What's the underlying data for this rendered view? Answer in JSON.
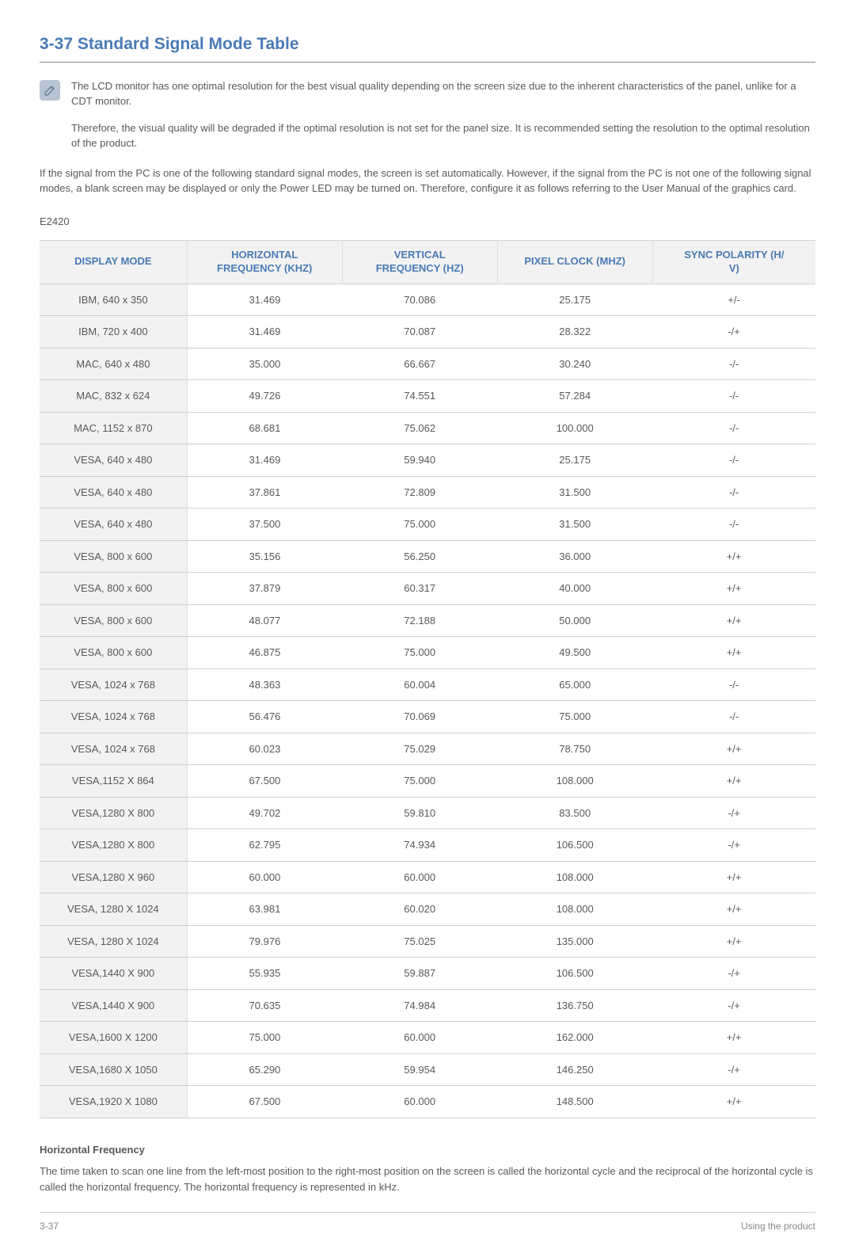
{
  "section": {
    "title": "3-37  Standard Signal Mode Table"
  },
  "note": {
    "para1": "The LCD monitor has one optimal resolution for the best visual quality depending on the screen size due to the inherent characteristics of the panel, unlike for a CDT monitor.",
    "para2": "Therefore, the visual quality will be degraded if the optimal resolution is not set for the panel size. It is recommended setting the resolution to the optimal resolution of the product."
  },
  "intro": "If the signal from the PC is one of the following standard signal modes, the screen is set automatically. However, if the signal from the PC is not one of the following signal modes, a blank screen may be displayed or only the Power LED may be turned on. Therefore, configure it as follows referring to the User Manual of the graphics card.",
  "model": "E2420",
  "table": {
    "headers": {
      "c0": "DISPLAY MODE",
      "c1_l1": "HORIZONTAL",
      "c1_l2": "FREQUENCY (KHZ)",
      "c2_l1": "VERTICAL",
      "c2_l2": "FREQUENCY (HZ)",
      "c3": "PIXEL CLOCK (MHZ)",
      "c4_l1": "SYNC POLARITY (H/",
      "c4_l2": "V)"
    },
    "rows": [
      {
        "mode": "IBM, 640 x 350",
        "hfreq": "31.469",
        "vfreq": "70.086",
        "pclk": "25.175",
        "sync": "+/-"
      },
      {
        "mode": "IBM, 720 x 400",
        "hfreq": "31.469",
        "vfreq": "70.087",
        "pclk": "28.322",
        "sync": "-/+"
      },
      {
        "mode": "MAC, 640 x 480",
        "hfreq": "35.000",
        "vfreq": "66.667",
        "pclk": "30.240",
        "sync": "-/-"
      },
      {
        "mode": "MAC, 832 x 624",
        "hfreq": "49.726",
        "vfreq": "74.551",
        "pclk": "57.284",
        "sync": "-/-"
      },
      {
        "mode": "MAC, 1152 x 870",
        "hfreq": "68.681",
        "vfreq": "75.062",
        "pclk": "100.000",
        "sync": "-/-"
      },
      {
        "mode": "VESA, 640 x 480",
        "hfreq": "31.469",
        "vfreq": "59.940",
        "pclk": "25.175",
        "sync": "-/-"
      },
      {
        "mode": "VESA, 640 x 480",
        "hfreq": "37.861",
        "vfreq": "72.809",
        "pclk": "31.500",
        "sync": "-/-"
      },
      {
        "mode": "VESA, 640 x 480",
        "hfreq": "37.500",
        "vfreq": "75.000",
        "pclk": "31.500",
        "sync": "-/-"
      },
      {
        "mode": "VESA, 800 x 600",
        "hfreq": "35.156",
        "vfreq": "56.250",
        "pclk": "36.000",
        "sync": "+/+"
      },
      {
        "mode": "VESA, 800 x 600",
        "hfreq": "37.879",
        "vfreq": "60.317",
        "pclk": "40.000",
        "sync": "+/+"
      },
      {
        "mode": "VESA, 800 x 600",
        "hfreq": "48.077",
        "vfreq": "72.188",
        "pclk": "50.000",
        "sync": "+/+"
      },
      {
        "mode": "VESA, 800 x 600",
        "hfreq": "46.875",
        "vfreq": "75.000",
        "pclk": "49.500",
        "sync": "+/+"
      },
      {
        "mode": "VESA, 1024 x 768",
        "hfreq": "48.363",
        "vfreq": "60.004",
        "pclk": "65.000",
        "sync": "-/-"
      },
      {
        "mode": "VESA, 1024 x 768",
        "hfreq": "56.476",
        "vfreq": "70.069",
        "pclk": "75.000",
        "sync": "-/-"
      },
      {
        "mode": "VESA, 1024 x 768",
        "hfreq": "60.023",
        "vfreq": "75.029",
        "pclk": "78.750",
        "sync": "+/+"
      },
      {
        "mode": "VESA,1152 X 864",
        "hfreq": "67.500",
        "vfreq": "75.000",
        "pclk": "108.000",
        "sync": "+/+"
      },
      {
        "mode": "VESA,1280 X 800",
        "hfreq": "49.702",
        "vfreq": "59.810",
        "pclk": "83.500",
        "sync": "-/+"
      },
      {
        "mode": "VESA,1280 X 800",
        "hfreq": "62.795",
        "vfreq": "74.934",
        "pclk": "106.500",
        "sync": "-/+"
      },
      {
        "mode": "VESA,1280 X 960",
        "hfreq": "60.000",
        "vfreq": "60.000",
        "pclk": "108.000",
        "sync": "+/+"
      },
      {
        "mode": "VESA, 1280 X 1024",
        "hfreq": "63.981",
        "vfreq": "60.020",
        "pclk": "108.000",
        "sync": "+/+"
      },
      {
        "mode": "VESA, 1280 X 1024",
        "hfreq": "79.976",
        "vfreq": "75.025",
        "pclk": "135.000",
        "sync": "+/+"
      },
      {
        "mode": "VESA,1440 X 900",
        "hfreq": "55.935",
        "vfreq": "59.887",
        "pclk": "106.500",
        "sync": "-/+"
      },
      {
        "mode": "VESA,1440 X 900",
        "hfreq": "70.635",
        "vfreq": "74.984",
        "pclk": "136.750",
        "sync": "-/+"
      },
      {
        "mode": "VESA,1600 X 1200",
        "hfreq": "75.000",
        "vfreq": "60.000",
        "pclk": "162.000",
        "sync": "+/+"
      },
      {
        "mode": "VESA,1680 X 1050",
        "hfreq": "65.290",
        "vfreq": "59.954",
        "pclk": "146.250",
        "sync": "-/+"
      },
      {
        "mode": "VESA,1920 X 1080",
        "hfreq": "67.500",
        "vfreq": "60.000",
        "pclk": "148.500",
        "sync": "+/+"
      }
    ],
    "colWidths": [
      "19%",
      "20%",
      "20%",
      "20%",
      "21%"
    ]
  },
  "hfreq_section": {
    "title": "Horizontal Frequency",
    "body": "The time taken to scan one line from the left-most position to the right-most position on the screen is called the horizontal cycle and the reciprocal of the horizontal cycle is called the horizontal frequency. The horizontal frequency is represented in kHz."
  },
  "footer": {
    "left": "3-37",
    "right": "Using the product"
  },
  "colors": {
    "accent": "#4a7ab5",
    "text": "#595959",
    "muted": "#888888",
    "rule": "#cfcfcf",
    "shade": "#f2f2f2",
    "noteIconBg": "#b8c4d4"
  }
}
